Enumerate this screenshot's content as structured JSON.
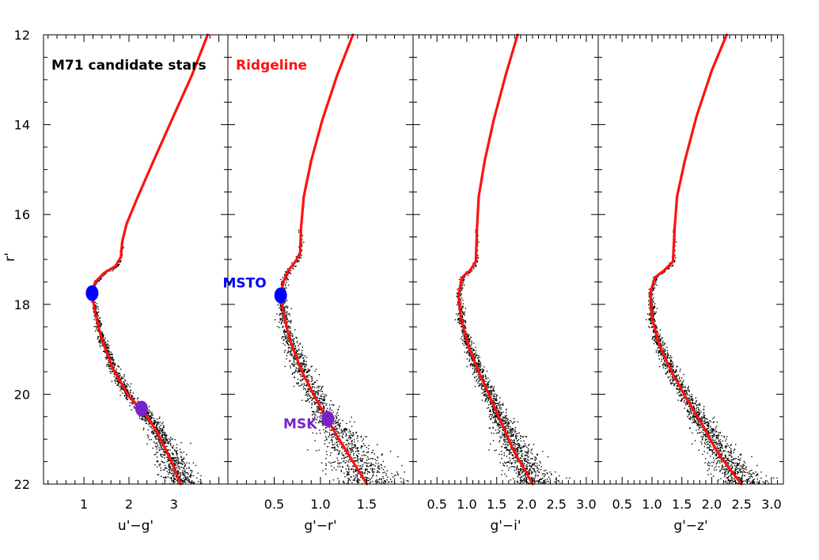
{
  "chart_data": {
    "type": "scatter",
    "title": "",
    "ylabel": "r'",
    "ylim": [
      22,
      12
    ],
    "yticks": [
      22,
      20,
      18,
      16,
      14,
      12
    ],
    "colors": {
      "ridgeline": "#ff1010",
      "stars": "#000000",
      "msto": "#0000ff",
      "msk": "#7722cc"
    },
    "panels": [
      {
        "xlabel": "u'−g'",
        "xlim": [
          0.1,
          4.2
        ],
        "xticks": [
          {
            "v": 1,
            "t": "1"
          },
          {
            "v": 2,
            "t": "2"
          },
          {
            "v": 3,
            "t": "3"
          }
        ],
        "annotation": "M71 candidate stars",
        "ridgeline": [
          [
            3.75,
            12.0
          ],
          [
            3.4,
            12.9
          ],
          [
            2.95,
            13.9
          ],
          [
            2.55,
            14.8
          ],
          [
            2.2,
            15.6
          ],
          [
            1.95,
            16.2
          ],
          [
            1.85,
            16.6
          ],
          [
            1.82,
            16.95
          ],
          [
            1.7,
            17.15
          ],
          [
            1.45,
            17.3
          ],
          [
            1.25,
            17.5
          ],
          [
            1.18,
            17.75
          ],
          [
            1.25,
            18.2
          ],
          [
            1.4,
            18.8
          ],
          [
            1.65,
            19.45
          ],
          [
            2.0,
            20.05
          ],
          [
            2.3,
            20.35
          ],
          [
            2.6,
            20.8
          ],
          [
            2.85,
            21.3
          ],
          [
            3.05,
            21.75
          ],
          [
            3.15,
            22.0
          ]
        ],
        "markers": [
          {
            "label": "",
            "x": 1.18,
            "y": 17.75,
            "kind": "msto"
          },
          {
            "label": "",
            "x": 2.28,
            "y": 20.32,
            "kind": "msk"
          }
        ]
      },
      {
        "xlabel": "g'−r'",
        "xlim": [
          0.0,
          2.0
        ],
        "xticks": [
          {
            "v": 0.5,
            "t": "0.5"
          },
          {
            "v": 1.0,
            "t": "1.0"
          },
          {
            "v": 1.5,
            "t": "1.5"
          }
        ],
        "annotation": "Ridgeline",
        "ridgeline": [
          [
            1.35,
            12.0
          ],
          [
            1.18,
            12.9
          ],
          [
            1.02,
            13.9
          ],
          [
            0.9,
            14.8
          ],
          [
            0.82,
            15.6
          ],
          [
            0.79,
            16.3
          ],
          [
            0.78,
            16.85
          ],
          [
            0.73,
            17.05
          ],
          [
            0.65,
            17.25
          ],
          [
            0.6,
            17.5
          ],
          [
            0.57,
            17.8
          ],
          [
            0.6,
            18.2
          ],
          [
            0.67,
            18.8
          ],
          [
            0.8,
            19.5
          ],
          [
            0.95,
            20.1
          ],
          [
            1.07,
            20.55
          ],
          [
            1.2,
            21.0
          ],
          [
            1.35,
            21.5
          ],
          [
            1.5,
            22.0
          ]
        ],
        "markers": [
          {
            "label": "MSTO",
            "x": 0.57,
            "y": 17.8,
            "kind": "msto"
          },
          {
            "label": "MSK",
            "x": 1.08,
            "y": 20.55,
            "kind": "msk"
          }
        ]
      },
      {
        "xlabel": "g'−i'",
        "xlim": [
          0.1,
          3.2
        ],
        "xticks": [
          {
            "v": 0.5,
            "t": "0.5"
          },
          {
            "v": 1.0,
            "t": "1.0"
          },
          {
            "v": 1.5,
            "t": "1.5"
          },
          {
            "v": 2.0,
            "t": "2.0"
          },
          {
            "v": 2.5,
            "t": "2.5"
          },
          {
            "v": 3.0,
            "t": "3.0"
          }
        ],
        "annotation": "",
        "ridgeline": [
          [
            1.85,
            12.0
          ],
          [
            1.65,
            12.9
          ],
          [
            1.45,
            13.9
          ],
          [
            1.3,
            14.8
          ],
          [
            1.2,
            15.6
          ],
          [
            1.17,
            16.3
          ],
          [
            1.15,
            17.05
          ],
          [
            1.05,
            17.25
          ],
          [
            0.92,
            17.4
          ],
          [
            0.86,
            17.8
          ],
          [
            0.9,
            18.3
          ],
          [
            1.02,
            18.9
          ],
          [
            1.2,
            19.5
          ],
          [
            1.4,
            20.1
          ],
          [
            1.6,
            20.7
          ],
          [
            1.8,
            21.3
          ],
          [
            2.0,
            21.75
          ],
          [
            2.1,
            22.0
          ]
        ],
        "markers": []
      },
      {
        "xlabel": "g'−z'",
        "xlim": [
          0.1,
          3.2
        ],
        "xticks": [
          {
            "v": 0.5,
            "t": "0.5"
          },
          {
            "v": 1.0,
            "t": "1.0"
          },
          {
            "v": 1.5,
            "t": "1.5"
          },
          {
            "v": 2.0,
            "t": "2.0"
          },
          {
            "v": 2.5,
            "t": "2.5"
          },
          {
            "v": 3.0,
            "t": "3.0"
          }
        ],
        "annotation": "",
        "ridgeline": [
          [
            2.25,
            12.0
          ],
          [
            2.0,
            12.8
          ],
          [
            1.75,
            13.8
          ],
          [
            1.55,
            14.8
          ],
          [
            1.42,
            15.6
          ],
          [
            1.38,
            16.3
          ],
          [
            1.35,
            17.05
          ],
          [
            1.2,
            17.25
          ],
          [
            1.05,
            17.4
          ],
          [
            0.97,
            17.75
          ],
          [
            1.0,
            18.3
          ],
          [
            1.12,
            18.9
          ],
          [
            1.33,
            19.5
          ],
          [
            1.58,
            20.1
          ],
          [
            1.85,
            20.7
          ],
          [
            2.1,
            21.3
          ],
          [
            2.35,
            21.75
          ],
          [
            2.5,
            22.0
          ]
        ],
        "markers": []
      }
    ]
  }
}
